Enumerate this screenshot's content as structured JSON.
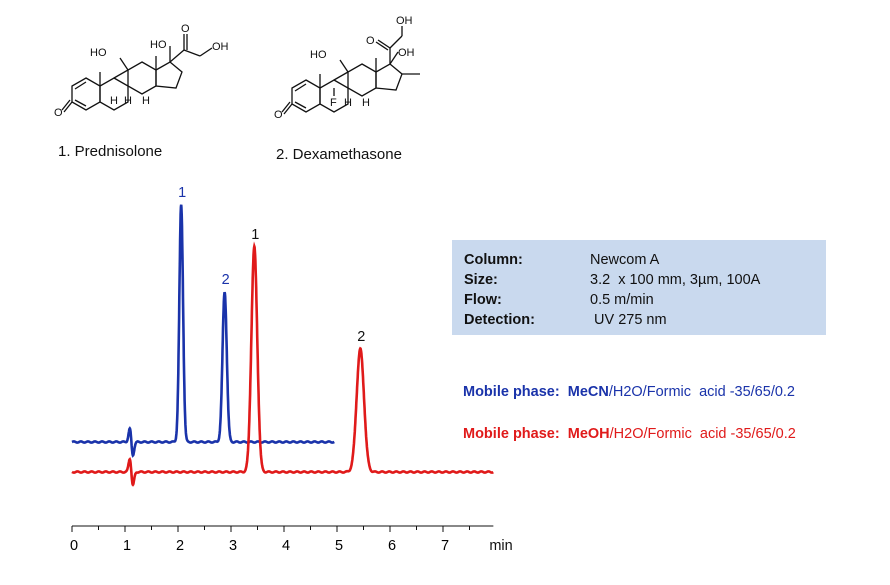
{
  "compounds": [
    {
      "number": "1",
      "name": "1. Prednisolone"
    },
    {
      "number": "2",
      "name": "2. Dexamethasone"
    }
  ],
  "structure_labels": {
    "prednisolone": {
      "ho11": "HO",
      "ho17": "HO",
      "oh21": "OH",
      "o20": "O",
      "o3": "O",
      "h8": "H",
      "h9": "H",
      "h14": "H"
    },
    "dexamethasone": {
      "ho11": "HO",
      "oh17": "OH",
      "oh21": "OH",
      "o20": "O",
      "o3": "O",
      "f9": "F",
      "h8": "H",
      "h14": "H"
    }
  },
  "conditions": [
    {
      "key": "Column:",
      "value": "Newcom A"
    },
    {
      "key": "Size:",
      "value": "3.2  x 100 mm, 3µm, 100A"
    },
    {
      "key": "Flow:",
      "value": "0.5 m/min"
    },
    {
      "key": "Detection:",
      "value": " UV 275 nm"
    }
  ],
  "mobile_phases": [
    {
      "label": "Mobile phase:",
      "solvent": "MeCN",
      "rest": "/H2O/Formic  acid -35/65/0.2",
      "color": "#1a33aa"
    },
    {
      "label": "Mobile phase:",
      "solvent": "MeOH",
      "rest": "/H2O/Formic  acid -35/65/0.2",
      "color": "#e01a1a"
    }
  ],
  "chart_data": {
    "type": "line",
    "xlabel": "min",
    "xlim": [
      0,
      7.95
    ],
    "ylim": [
      0,
      1
    ],
    "x_ticks": [
      0,
      1,
      2,
      3,
      4,
      5,
      6,
      7
    ],
    "x_tick_labels": [
      "0",
      "1",
      "2",
      "3",
      "4",
      "5",
      "6",
      "7"
    ],
    "series": [
      {
        "color": "#1a33aa",
        "x_range": [
          0,
          4.95
        ],
        "baseline": 0.1,
        "injection_disturbance": {
          "x": 1.12,
          "amplitude": 0.045
        },
        "peaks": [
          {
            "label": "1",
            "x": 2.06,
            "height": 0.79,
            "width": 0.035
          },
          {
            "label": "2",
            "x": 2.88,
            "height": 0.5,
            "width": 0.04
          }
        ]
      },
      {
        "color": "#e01a1a",
        "x_range": [
          0,
          7.95
        ],
        "baseline": 0.0,
        "injection_disturbance": {
          "x": 1.12,
          "amplitude": 0.045
        },
        "peaks": [
          {
            "label": "1",
            "x": 3.44,
            "height": 0.75,
            "width": 0.055
          },
          {
            "label": "2",
            "x": 5.44,
            "height": 0.41,
            "width": 0.07
          }
        ]
      }
    ]
  }
}
